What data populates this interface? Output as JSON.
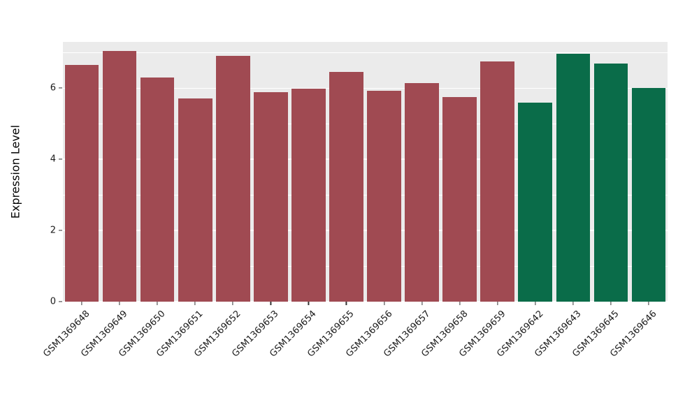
{
  "chart_data": {
    "type": "bar",
    "title": "",
    "xlabel": "",
    "ylabel": "Expression Level",
    "ylim": [
      0,
      7.3
    ],
    "yticks": [
      0,
      2,
      4,
      6
    ],
    "yticks_minor": [
      1,
      3,
      5,
      7
    ],
    "grid": true,
    "legend_position": "none",
    "panel_background": "#EBEBEB",
    "grid_color": "#FFFFFF",
    "group_colors": {
      "red_group": "#A04A52",
      "green_group": "#0A6C49"
    },
    "categories": [
      "GSM1369648",
      "GSM1369649",
      "GSM1369650",
      "GSM1369651",
      "GSM1369652",
      "GSM1369653",
      "GSM1369654",
      "GSM1369655",
      "GSM1369656",
      "GSM1369657",
      "GSM1369658",
      "GSM1369659",
      "GSM1369642",
      "GSM1369643",
      "GSM1369645",
      "GSM1369646"
    ],
    "values": [
      6.65,
      7.05,
      6.3,
      5.72,
      6.9,
      5.88,
      5.98,
      6.45,
      5.93,
      6.15,
      5.75,
      6.75,
      5.6,
      6.97,
      6.7,
      6.0
    ],
    "colors": [
      "#A04A52",
      "#A04A52",
      "#A04A52",
      "#A04A52",
      "#A04A52",
      "#A04A52",
      "#A04A52",
      "#A04A52",
      "#A04A52",
      "#A04A52",
      "#A04A52",
      "#A04A52",
      "#0A6C49",
      "#0A6C49",
      "#0A6C49",
      "#0A6C49"
    ]
  }
}
